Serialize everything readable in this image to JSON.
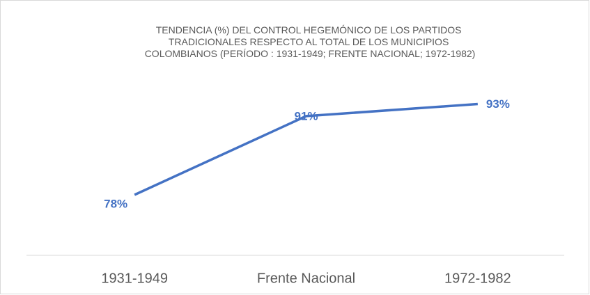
{
  "chart_data": {
    "type": "line",
    "title": [
      "TENDENCIA (%) DEL CONTROL HEGEMÓNICO DE LOS PARTIDOS",
      "TRADICIONALES RESPECTO AL TOTAL DE LOS MUNICIPIOS",
      "COLOMBIANOS (PERÍODO : 1931-1949; FRENTE NACIONAL; 1972-1982)"
    ],
    "categories": [
      "1931-1949",
      "Frente Nacional",
      "1972-1982"
    ],
    "values": [
      78,
      91,
      93
    ],
    "value_labels": [
      "78%",
      "91%",
      "93%"
    ],
    "color": "#4472c4",
    "ylim": [
      68,
      98
    ]
  }
}
